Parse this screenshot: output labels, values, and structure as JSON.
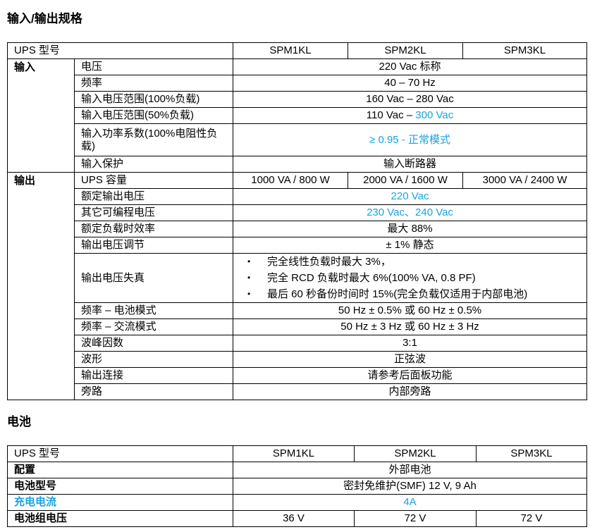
{
  "section1": {
    "title": "输入/输出规格",
    "header": {
      "label": "UPS 型号",
      "models": [
        "SPM1KL",
        "SPM2KL",
        "SPM3KL"
      ]
    },
    "input": {
      "group": "输入",
      "rows": [
        {
          "label": "电压",
          "value": "220 Vac 标称"
        },
        {
          "label": "频率",
          "value": "40 – 70 Hz"
        },
        {
          "label": "输入电压范围(100%负载)",
          "value": "160 Vac – 280 Vac"
        },
        {
          "label": "输入电压范围(50%负载)",
          "value_a": "110 Vac – ",
          "value_b": "300 Vac"
        },
        {
          "label": "输入功率系数(100%电阻性负载)",
          "value": "≥ 0.95 -  正常模式"
        },
        {
          "label": "输入保护",
          "value": "输入断路器"
        }
      ]
    },
    "output": {
      "group": "输出",
      "capacity": {
        "label": "UPS 容量",
        "values": [
          "1000 VA / 800 W",
          "2000 VA / 1600 W",
          "3000 VA / 2400 W"
        ]
      },
      "rows": [
        {
          "label": "额定输出电压",
          "value": "220 Vac"
        },
        {
          "label": "其它可编程电压",
          "value": "230 Vac、240 Vac"
        },
        {
          "label": "额定负载时效率",
          "value": "最大 88%"
        },
        {
          "label": "输出电压调节",
          "value": "± 1%  静态"
        }
      ],
      "distortion": {
        "label": "输出电压失真",
        "items": [
          "完全线性负载时最大 3%，",
          "完全 RCD 负载时最大 6%(100% VA, 0.8 PF)",
          "最后 60 秒备份时间时 15%(完全负载仅适用于内部电池)"
        ]
      },
      "rows2": [
        {
          "label": "频率 – 电池模式",
          "value": "50 Hz ± 0.5%  或  60 Hz ± 0.5%"
        },
        {
          "label": "频率 – 交流模式",
          "value": "50 Hz ± 3 Hz  或  60 Hz ± 3 Hz"
        },
        {
          "label": "波峰因数",
          "value": "3:1"
        },
        {
          "label": "波形",
          "value": "正弦波"
        },
        {
          "label": "输出连接",
          "value": "请参考后面板功能"
        },
        {
          "label": "旁路",
          "value": "内部旁路"
        }
      ]
    }
  },
  "section2": {
    "title": "电池",
    "header": {
      "label": "UPS 型号",
      "models": [
        "SPM1KL",
        "SPM2KL",
        "SPM3KL"
      ]
    },
    "rows": [
      {
        "label": "配置",
        "value": "外部电池"
      },
      {
        "label": "电池型号",
        "value": "密封免维护(SMF) 12 V, 9 Ah"
      },
      {
        "label": "充电电流",
        "value": "4A"
      }
    ],
    "pack": {
      "label": "电池组电压",
      "values": [
        "36 V",
        "72 V",
        "72 V"
      ]
    }
  },
  "colors": {
    "highlight": "#1aa3e0"
  }
}
